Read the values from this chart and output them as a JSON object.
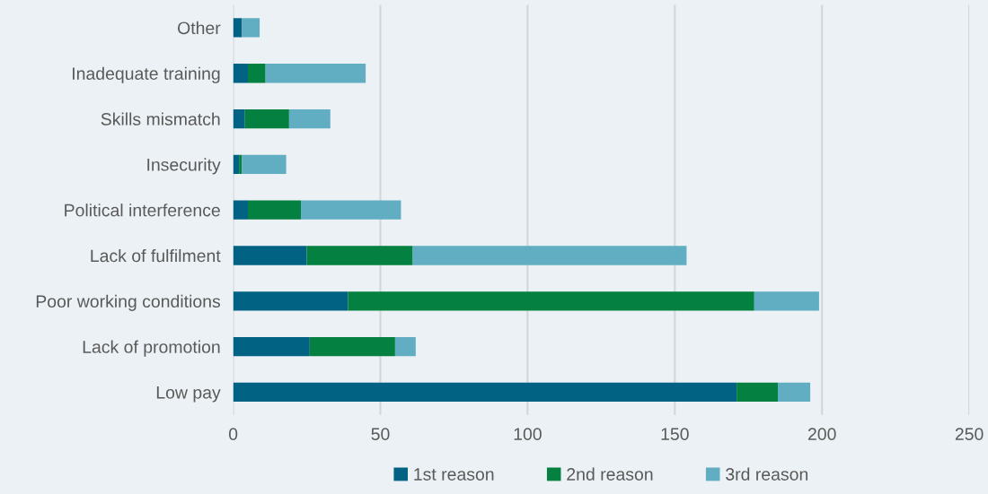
{
  "chart_data": {
    "type": "bar",
    "orientation": "horizontal",
    "stacked": true,
    "categories": [
      "Other",
      "Inadequate training",
      "Skills mismatch",
      "Insecurity",
      "Political interference",
      "Lack of fulfilment",
      "Poor working conditions",
      "Lack of promotion",
      "Low pay"
    ],
    "series": [
      {
        "name": "1st reason",
        "color": "#026283",
        "values": [
          3,
          5,
          4,
          2,
          5,
          25,
          39,
          26,
          171
        ]
      },
      {
        "name": "2nd reason",
        "color": "#048141",
        "values": [
          0,
          6,
          15,
          1,
          18,
          36,
          138,
          29,
          14
        ]
      },
      {
        "name": "3rd reason",
        "color": "#61aec3",
        "values": [
          6,
          34,
          14,
          15,
          34,
          93,
          22,
          7,
          11
        ]
      }
    ],
    "xlim": [
      0,
      250
    ],
    "xticks": [
      0,
      50,
      100,
      150,
      200,
      250
    ],
    "grid": "x",
    "legend": "bottom"
  }
}
